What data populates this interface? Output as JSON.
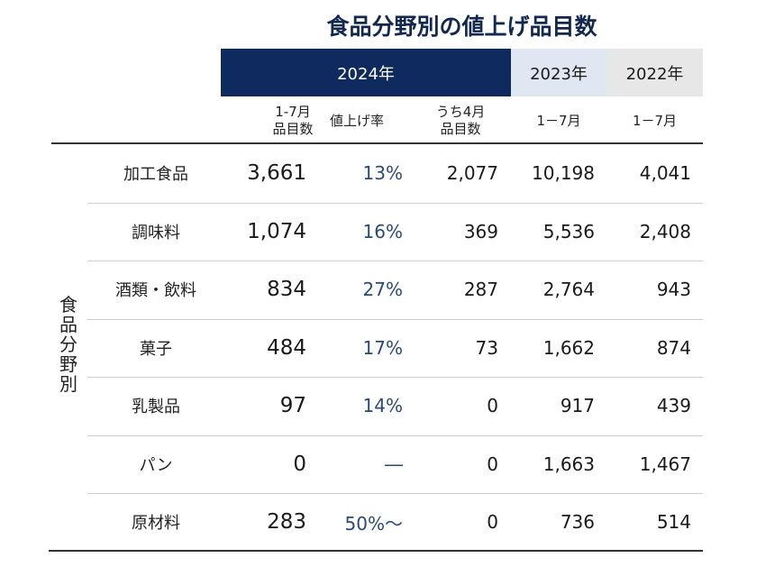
{
  "title": "食品分野別の値上げ品目数",
  "groups": {
    "y2024": "2024年",
    "y2023": "2023年",
    "y2022": "2022年"
  },
  "subheaders": {
    "c1": [
      "1-7月",
      "品目数"
    ],
    "c2": [
      "値上げ率"
    ],
    "c3": [
      "うち4月",
      "品目数"
    ],
    "c4": [
      "1－7月"
    ],
    "c5": [
      "1－7月"
    ]
  },
  "side_label": "食品分野別",
  "chart_data": {
    "type": "table",
    "title": "食品分野別の値上げ品目数",
    "columns": [
      "2024年 1-7月 品目数",
      "2024年 値上げ率",
      "2024年 うち4月 品目数",
      "2023年 1－7月",
      "2022年 1－7月"
    ],
    "rows": [
      {
        "category": "加工食品",
        "c1": "3,661",
        "c2": "13%",
        "c3": "2,077",
        "c4": "10,198",
        "c5": "4,041"
      },
      {
        "category": "調味料",
        "c1": "1,074",
        "c2": "16%",
        "c3": "369",
        "c4": "5,536",
        "c5": "2,408"
      },
      {
        "category": "酒類・飲料",
        "c1": "834",
        "c2": "27%",
        "c3": "287",
        "c4": "2,764",
        "c5": "943"
      },
      {
        "category": "菓子",
        "c1": "484",
        "c2": "17%",
        "c3": "73",
        "c4": "1,662",
        "c5": "874"
      },
      {
        "category": "乳製品",
        "c1": "97",
        "c2": "14%",
        "c3": "0",
        "c4": "917",
        "c5": "439"
      },
      {
        "category": "パン",
        "c1": "0",
        "c2": "―",
        "c3": "0",
        "c4": "1,663",
        "c5": "1,467"
      },
      {
        "category": "原材料",
        "c1": "283",
        "c2": "50%～",
        "c3": "0",
        "c4": "736",
        "c5": "514"
      }
    ]
  },
  "colors": {
    "header_2024_bg": "#0e2a5e",
    "header_2023_bg": "#dfe7f3",
    "header_2022_bg": "#e7e7e7",
    "title_color": "#13284f",
    "rate_color": "#2a4a78"
  }
}
